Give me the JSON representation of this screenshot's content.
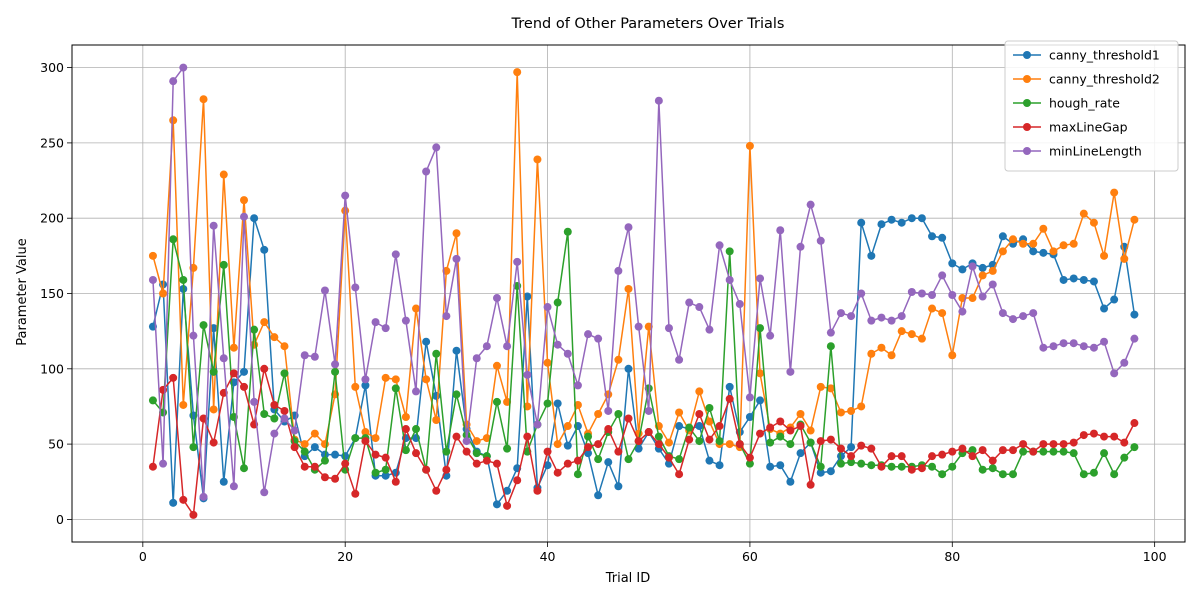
{
  "chart_data": {
    "type": "line",
    "title": "Trend of Other Parameters Over Trials",
    "xlabel": "Trial ID",
    "ylabel": "Parameter Value",
    "xlim": [
      -7,
      103
    ],
    "ylim": [
      -15,
      315
    ],
    "xticks": [
      0,
      20,
      40,
      60,
      80,
      100
    ],
    "yticks": [
      0,
      50,
      100,
      150,
      200,
      250,
      300
    ],
    "grid": true,
    "legend": "top-right",
    "x": [
      1,
      2,
      3,
      4,
      5,
      6,
      7,
      8,
      9,
      10,
      11,
      12,
      13,
      14,
      15,
      16,
      17,
      18,
      19,
      20,
      21,
      22,
      23,
      24,
      25,
      26,
      27,
      28,
      29,
      30,
      31,
      32,
      33,
      34,
      35,
      36,
      37,
      38,
      39,
      40,
      41,
      42,
      43,
      44,
      45,
      46,
      47,
      48,
      49,
      50,
      51,
      52,
      53,
      54,
      55,
      56,
      57,
      58,
      59,
      60,
      61,
      62,
      63,
      64,
      65,
      66,
      67,
      68,
      69,
      70,
      71,
      72,
      73,
      74,
      75,
      76,
      77,
      78,
      79,
      80,
      81,
      82,
      83,
      84,
      85,
      86,
      87,
      88,
      89,
      90,
      91,
      92,
      93,
      94,
      95,
      96,
      97,
      98
    ],
    "series": [
      {
        "name": "canny_threshold1",
        "color": "#1f77b4",
        "values": [
          128,
          156,
          11,
          153,
          69,
          14,
          127,
          25,
          91,
          98,
          200,
          179,
          73,
          65,
          69,
          42,
          48,
          43,
          43,
          42,
          54,
          89,
          29,
          29,
          31,
          54,
          54,
          118,
          82,
          29,
          112,
          60,
          45,
          42,
          10,
          19,
          34,
          148,
          21,
          36,
          77,
          49,
          62,
          44,
          16,
          38,
          22,
          100,
          47,
          58,
          47,
          37,
          62,
          60,
          62,
          39,
          36,
          88,
          58,
          68,
          79,
          35,
          36,
          25,
          44,
          51,
          31,
          32,
          42,
          48,
          197,
          175,
          196,
          199,
          197,
          200,
          200,
          188,
          187,
          170,
          166,
          170,
          167,
          169,
          188,
          183,
          186,
          178,
          177,
          176,
          159,
          160,
          159,
          158,
          140,
          146,
          181,
          136
        ]
      },
      {
        "name": "canny_threshold2",
        "color": "#ff7f0e",
        "values": [
          175,
          150,
          265,
          76,
          167,
          279,
          73,
          229,
          114,
          212,
          116,
          131,
          121,
          115,
          53,
          50,
          57,
          50,
          83,
          205,
          88,
          58,
          54,
          94,
          93,
          68,
          140,
          93,
          66,
          165,
          190,
          63,
          52,
          54,
          102,
          78,
          297,
          75,
          239,
          104,
          50,
          62,
          76,
          57,
          70,
          83,
          106,
          153,
          57,
          128,
          62,
          51,
          71,
          59,
          85,
          65,
          50,
          50,
          48,
          248,
          97,
          60,
          57,
          61,
          70,
          59,
          88,
          87,
          71,
          72,
          75,
          110,
          114,
          109,
          125,
          123,
          120,
          140,
          137,
          109,
          147,
          147,
          162,
          165,
          178,
          186,
          183,
          183,
          193,
          178,
          182,
          183,
          203,
          197,
          175,
          217,
          173,
          199
        ]
      },
      {
        "name": "hough_rate",
        "color": "#2ca02c",
        "values": [
          79,
          71,
          186,
          159,
          48,
          129,
          98,
          169,
          68,
          34,
          126,
          70,
          67,
          97,
          52,
          45,
          33,
          39,
          98,
          33,
          54,
          54,
          31,
          33,
          87,
          46,
          60,
          33,
          110,
          45,
          83,
          56,
          44,
          42,
          78,
          47,
          155,
          45,
          63,
          77,
          144,
          191,
          30,
          55,
          40,
          58,
          70,
          40,
          52,
          87,
          55,
          42,
          40,
          61,
          52,
          74,
          52,
          178,
          50,
          37,
          127,
          51,
          55,
          50,
          63,
          51,
          35,
          115,
          37,
          38,
          37,
          36,
          36,
          35,
          35,
          35,
          36,
          35,
          30,
          35,
          44,
          46,
          33,
          34,
          30,
          30,
          45,
          45,
          45,
          45,
          45,
          44,
          30,
          31,
          44,
          30,
          41,
          48
        ]
      },
      {
        "name": "maxLineGap",
        "color": "#d62728",
        "values": [
          35,
          86,
          94,
          13,
          3,
          67,
          51,
          84,
          97,
          88,
          63,
          100,
          76,
          72,
          48,
          35,
          35,
          28,
          27,
          37,
          17,
          52,
          43,
          41,
          25,
          60,
          44,
          33,
          19,
          33,
          55,
          45,
          37,
          39,
          37,
          9,
          26,
          55,
          19,
          45,
          31,
          37,
          39,
          48,
          50,
          60,
          45,
          67,
          52,
          58,
          50,
          41,
          30,
          53,
          70,
          53,
          62,
          80,
          50,
          41,
          57,
          61,
          65,
          59,
          62,
          23,
          52,
          53,
          47,
          42,
          49,
          47,
          35,
          42,
          42,
          33,
          34,
          42,
          43,
          45,
          47,
          42,
          46,
          39,
          46,
          46,
          50,
          45,
          50,
          50,
          50,
          51,
          56,
          57,
          55,
          55,
          51,
          64
        ]
      },
      {
        "name": "minLineLength",
        "color": "#9467bd",
        "values": [
          159,
          37,
          291,
          300,
          122,
          15,
          195,
          107,
          22,
          201,
          78,
          18,
          57,
          67,
          59,
          109,
          108,
          152,
          103,
          215,
          154,
          93,
          131,
          127,
          176,
          132,
          85,
          231,
          247,
          135,
          173,
          52,
          107,
          115,
          147,
          115,
          171,
          96,
          63,
          141,
          116,
          110,
          89,
          123,
          120,
          72,
          165,
          194,
          128,
          72,
          278,
          127,
          106,
          144,
          141,
          126,
          182,
          159,
          143,
          81,
          160,
          122,
          192,
          98,
          181,
          209,
          185,
          124,
          137,
          135,
          150,
          132,
          134,
          132,
          135,
          151,
          150,
          149,
          162,
          149,
          138,
          168,
          148,
          156,
          137,
          133,
          135,
          137,
          114,
          115,
          117,
          117,
          115,
          114,
          118,
          97,
          104,
          120
        ]
      }
    ]
  }
}
